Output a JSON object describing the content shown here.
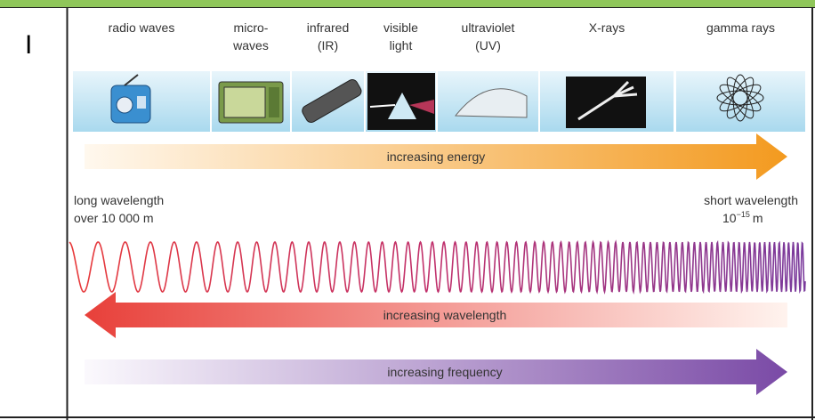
{
  "row_label": "I",
  "bands": [
    {
      "lines": [
        "radio waves"
      ]
    },
    {
      "lines": [
        "micro-",
        "waves"
      ]
    },
    {
      "lines": [
        "infrared",
        "(IR)"
      ]
    },
    {
      "lines": [
        "visible",
        "light"
      ]
    },
    {
      "lines": [
        "ultraviolet",
        "(UV)"
      ]
    },
    {
      "lines": [
        "X-rays"
      ]
    },
    {
      "lines": [
        "gamma rays"
      ]
    }
  ],
  "arrows": {
    "energy": "increasing energy",
    "wavelength": "increasing wavelength",
    "frequency": "increasing frequency"
  },
  "long_end": {
    "lines": [
      "long wavelength",
      "over 10 000 m"
    ]
  },
  "short_end": {
    "line1": "short wavelength",
    "base": "10",
    "exponent": "−15",
    "unit": "m"
  }
}
